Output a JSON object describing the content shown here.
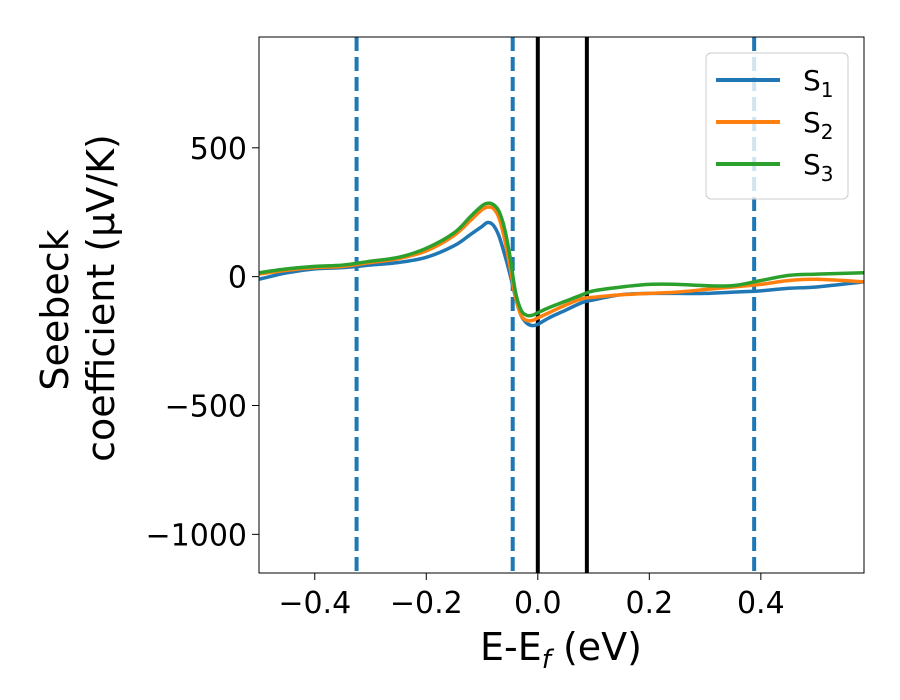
{
  "chart_data": {
    "type": "line",
    "xlabel": "E-E",
    "xlabel_sub": "f",
    "xlabel_unit": " (eV)",
    "ylabel_line1": "Seebeck",
    "ylabel_line2": "coefficient  (μV/K)",
    "xlim": [
      -0.5,
      0.585
    ],
    "ylim": [
      -1150,
      930
    ],
    "xticks": [
      -0.4,
      -0.2,
      0.0,
      0.2,
      0.4
    ],
    "xtick_labels": [
      "−0.4",
      "−0.2",
      "0.0",
      "0.2",
      "0.4"
    ],
    "yticks": [
      500,
      0,
      -500,
      -1000
    ],
    "ytick_labels": [
      "500",
      "0",
      "−500",
      "−1000"
    ],
    "grid": false,
    "legend_position": "top-right",
    "series": [
      {
        "name": "S",
        "sub": "1",
        "color": "#1f77b4",
        "x": [
          -0.5,
          -0.45,
          -0.4,
          -0.35,
          -0.3,
          -0.25,
          -0.2,
          -0.15,
          -0.12,
          -0.1,
          -0.09,
          -0.08,
          -0.07,
          -0.06,
          -0.05,
          -0.04,
          -0.03,
          -0.02,
          -0.01,
          0.0,
          0.02,
          0.05,
          0.08,
          0.1,
          0.15,
          0.2,
          0.25,
          0.3,
          0.35,
          0.4,
          0.45,
          0.5,
          0.585
        ],
        "y": [
          -10,
          15,
          30,
          35,
          45,
          55,
          75,
          120,
          165,
          195,
          210,
          200,
          160,
          90,
          10,
          -80,
          -150,
          -180,
          -190,
          -185,
          -160,
          -130,
          -100,
          -90,
          -70,
          -65,
          -65,
          -65,
          -60,
          -55,
          -45,
          -40,
          -20
        ]
      },
      {
        "name": "S",
        "sub": "2",
        "color": "#ff7f0e",
        "x": [
          -0.5,
          -0.45,
          -0.4,
          -0.35,
          -0.3,
          -0.25,
          -0.2,
          -0.15,
          -0.12,
          -0.1,
          -0.09,
          -0.08,
          -0.07,
          -0.06,
          -0.05,
          -0.04,
          -0.03,
          -0.02,
          -0.01,
          0.0,
          0.02,
          0.05,
          0.08,
          0.1,
          0.15,
          0.2,
          0.25,
          0.3,
          0.35,
          0.4,
          0.45,
          0.5,
          0.585
        ],
        "y": [
          10,
          25,
          35,
          40,
          55,
          70,
          100,
          160,
          220,
          260,
          270,
          265,
          230,
          150,
          40,
          -80,
          -150,
          -170,
          -170,
          -160,
          -140,
          -110,
          -85,
          -80,
          -70,
          -65,
          -60,
          -50,
          -40,
          -30,
          -15,
          -10,
          -20
        ]
      },
      {
        "name": "S",
        "sub": "3",
        "color": "#2ca02c",
        "x": [
          -0.5,
          -0.45,
          -0.4,
          -0.35,
          -0.3,
          -0.25,
          -0.2,
          -0.15,
          -0.12,
          -0.1,
          -0.09,
          -0.08,
          -0.07,
          -0.06,
          -0.05,
          -0.04,
          -0.03,
          -0.02,
          -0.01,
          0.0,
          0.02,
          0.05,
          0.08,
          0.1,
          0.15,
          0.2,
          0.25,
          0.3,
          0.35,
          0.4,
          0.45,
          0.5,
          0.585
        ],
        "y": [
          15,
          30,
          40,
          45,
          60,
          75,
          110,
          170,
          235,
          275,
          285,
          280,
          255,
          190,
          80,
          -60,
          -130,
          -150,
          -150,
          -140,
          -120,
          -95,
          -70,
          -55,
          -40,
          -30,
          -30,
          -35,
          -35,
          -15,
          5,
          10,
          15
        ]
      }
    ],
    "vlines": [
      {
        "x": -0.325,
        "style": "dashed",
        "color": "#1f77b4"
      },
      {
        "x": -0.045,
        "style": "dashed",
        "color": "#1f77b4"
      },
      {
        "x": 0.0,
        "style": "solid",
        "color": "#000000"
      },
      {
        "x": 0.088,
        "style": "solid",
        "color": "#000000"
      },
      {
        "x": 0.388,
        "style": "dashed",
        "color": "#1f77b4"
      }
    ]
  }
}
